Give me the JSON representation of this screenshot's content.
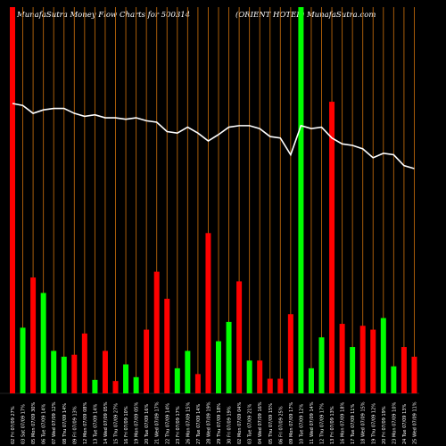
{
  "header": {
    "left": "MunafaSutra  Money Flow  Charts for 500314",
    "right": "(ORIENT HOTEL) MunafaSutra.com"
  },
  "colors": {
    "up": "#00ff00",
    "down": "#ff0000",
    "grid": "#b8650a",
    "line": "#ffffff",
    "background": "#000000"
  },
  "chart_data": {
    "type": "bar",
    "title": "Money Flow Charts for 500314",
    "categories": [
      "02 Fri 07/09 27%",
      "03 Sat 07/09 17%",
      "05 Mon 07/09 30%",
      "06 Tue 07/09 14%",
      "07 Wed 07/09 12%",
      "08 Thu 07/09 14%",
      "09 Fri 07/09 13%",
      "12 Mon 07/09 08%",
      "13 Tue 07/09 14%",
      "14 Wed 07/09 05%",
      "15 Thu 07/09 27%",
      "16 Fri 07/09 10%",
      "19 Mon 07/09 05%",
      "20 Tue 07/09 16%",
      "21 Wed 07/09 17%",
      "22 Thu 07/09 14%",
      "23 Fri 07/09 17%",
      "26 Mon 07/09 15%",
      "27 Tue 07/09 14%",
      "28 Wed 07/09 19%",
      "29 Thu 07/09 18%",
      "30 Fri 07/09 19%",
      "02 Mon 07/09 04%",
      "03 Tue 07/09 21%",
      "04 Wed 07/09 16%",
      "05 Thu 07/09 15%",
      "06 Fri 07/09 25%",
      "09 Mon 07/09 17%",
      "10 Tue 07/09 12%",
      "11 Wed 07/09 14%",
      "12 Thu 07/09 17%",
      "13 Fri 07/09 13%",
      "16 Mon 07/09 18%",
      "17 Tue 07/09 11%",
      "18 Wed 07/09 15%",
      "19 Thu 07/09 12%",
      "20 Fri 07/09 19%",
      "23 Mon 07/09 10%",
      "24 Tue 07/09 13%",
      "25 Wed 07/09 11%"
    ],
    "bars": [
      {
        "value": 100,
        "color": "down"
      },
      {
        "value": 17,
        "color": "up"
      },
      {
        "value": 30,
        "color": "down"
      },
      {
        "value": 26,
        "color": "up"
      },
      {
        "value": 11,
        "color": "up"
      },
      {
        "value": 9.5,
        "color": "up"
      },
      {
        "value": 10,
        "color": "down"
      },
      {
        "value": 15.5,
        "color": "down"
      },
      {
        "value": 3.5,
        "color": "up"
      },
      {
        "value": 11,
        "color": "down"
      },
      {
        "value": 3.2,
        "color": "down"
      },
      {
        "value": 7.5,
        "color": "up"
      },
      {
        "value": 4.2,
        "color": "up"
      },
      {
        "value": 16.5,
        "color": "down"
      },
      {
        "value": 31.5,
        "color": "down"
      },
      {
        "value": 24.5,
        "color": "down"
      },
      {
        "value": 6.5,
        "color": "up"
      },
      {
        "value": 11,
        "color": "up"
      },
      {
        "value": 5,
        "color": "down"
      },
      {
        "value": 41.5,
        "color": "down"
      },
      {
        "value": 13.5,
        "color": "up"
      },
      {
        "value": 18.5,
        "color": "up"
      },
      {
        "value": 29,
        "color": "down"
      },
      {
        "value": 8.5,
        "color": "up"
      },
      {
        "value": 8.5,
        "color": "down"
      },
      {
        "value": 3.8,
        "color": "down"
      },
      {
        "value": 3.8,
        "color": "down"
      },
      {
        "value": 20.5,
        "color": "down"
      },
      {
        "value": 100,
        "color": "up"
      },
      {
        "value": 6.5,
        "color": "up"
      },
      {
        "value": 14.5,
        "color": "up"
      },
      {
        "value": 75.5,
        "color": "down"
      },
      {
        "value": 18,
        "color": "down"
      },
      {
        "value": 12,
        "color": "up"
      },
      {
        "value": 17.5,
        "color": "down"
      },
      {
        "value": 16.5,
        "color": "down"
      },
      {
        "value": 19.5,
        "color": "up"
      },
      {
        "value": 7,
        "color": "up"
      },
      {
        "value": 12,
        "color": "down"
      },
      {
        "value": 9.5,
        "color": "down"
      }
    ],
    "price_line": [
      92.6,
      92.2,
      90.6,
      91.3,
      91.6,
      91.6,
      90.6,
      90.0,
      90.3,
      89.7,
      89.7,
      89.4,
      89.7,
      89.1,
      88.8,
      86.9,
      86.6,
      87.8,
      86.6,
      85.0,
      86.3,
      87.8,
      88.1,
      88.1,
      87.5,
      85.9,
      85.6,
      82.2,
      88.1,
      87.5,
      87.8,
      85.6,
      84.4,
      84.1,
      83.4,
      81.6,
      82.5,
      82.2,
      80.0,
      79.4
    ],
    "ylim": [
      0,
      100
    ]
  }
}
